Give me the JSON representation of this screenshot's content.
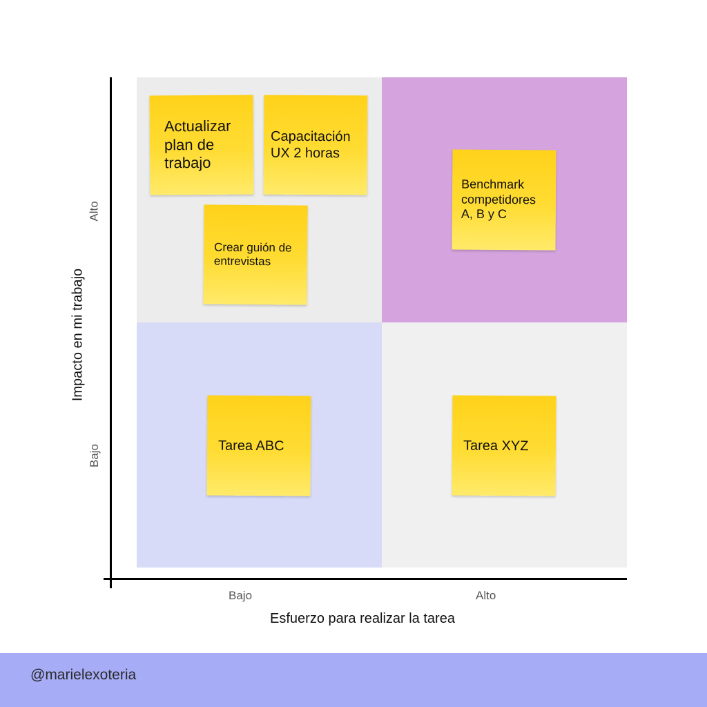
{
  "colors": {
    "high_impact_low_effort": "#ececec",
    "high_impact_high_effort": "#d5a3de",
    "low_impact_low_effort": "#d7dbf8",
    "low_impact_high_effort": "#f0f0f0",
    "sticky_note": "#ffd924",
    "footer": "#a7acf7"
  },
  "axes": {
    "x_title": "Esfuerzo para realizar la tarea",
    "y_title": "Impacto en mi trabajo",
    "x_ticks": [
      "Bajo",
      "Alto"
    ],
    "y_ticks": [
      "Alto",
      "Bajo"
    ]
  },
  "notes": {
    "actualizar": "Actualizar plan de trabajo",
    "capacitacion": "Capacitación UX 2 horas",
    "guion": "Crear guión de entrevistas",
    "benchmark": "Benchmark competidores A, B y C",
    "abc": "Tarea ABC",
    "xyz": "Tarea XYZ"
  },
  "footer": {
    "handle": "@marielexoteria"
  }
}
